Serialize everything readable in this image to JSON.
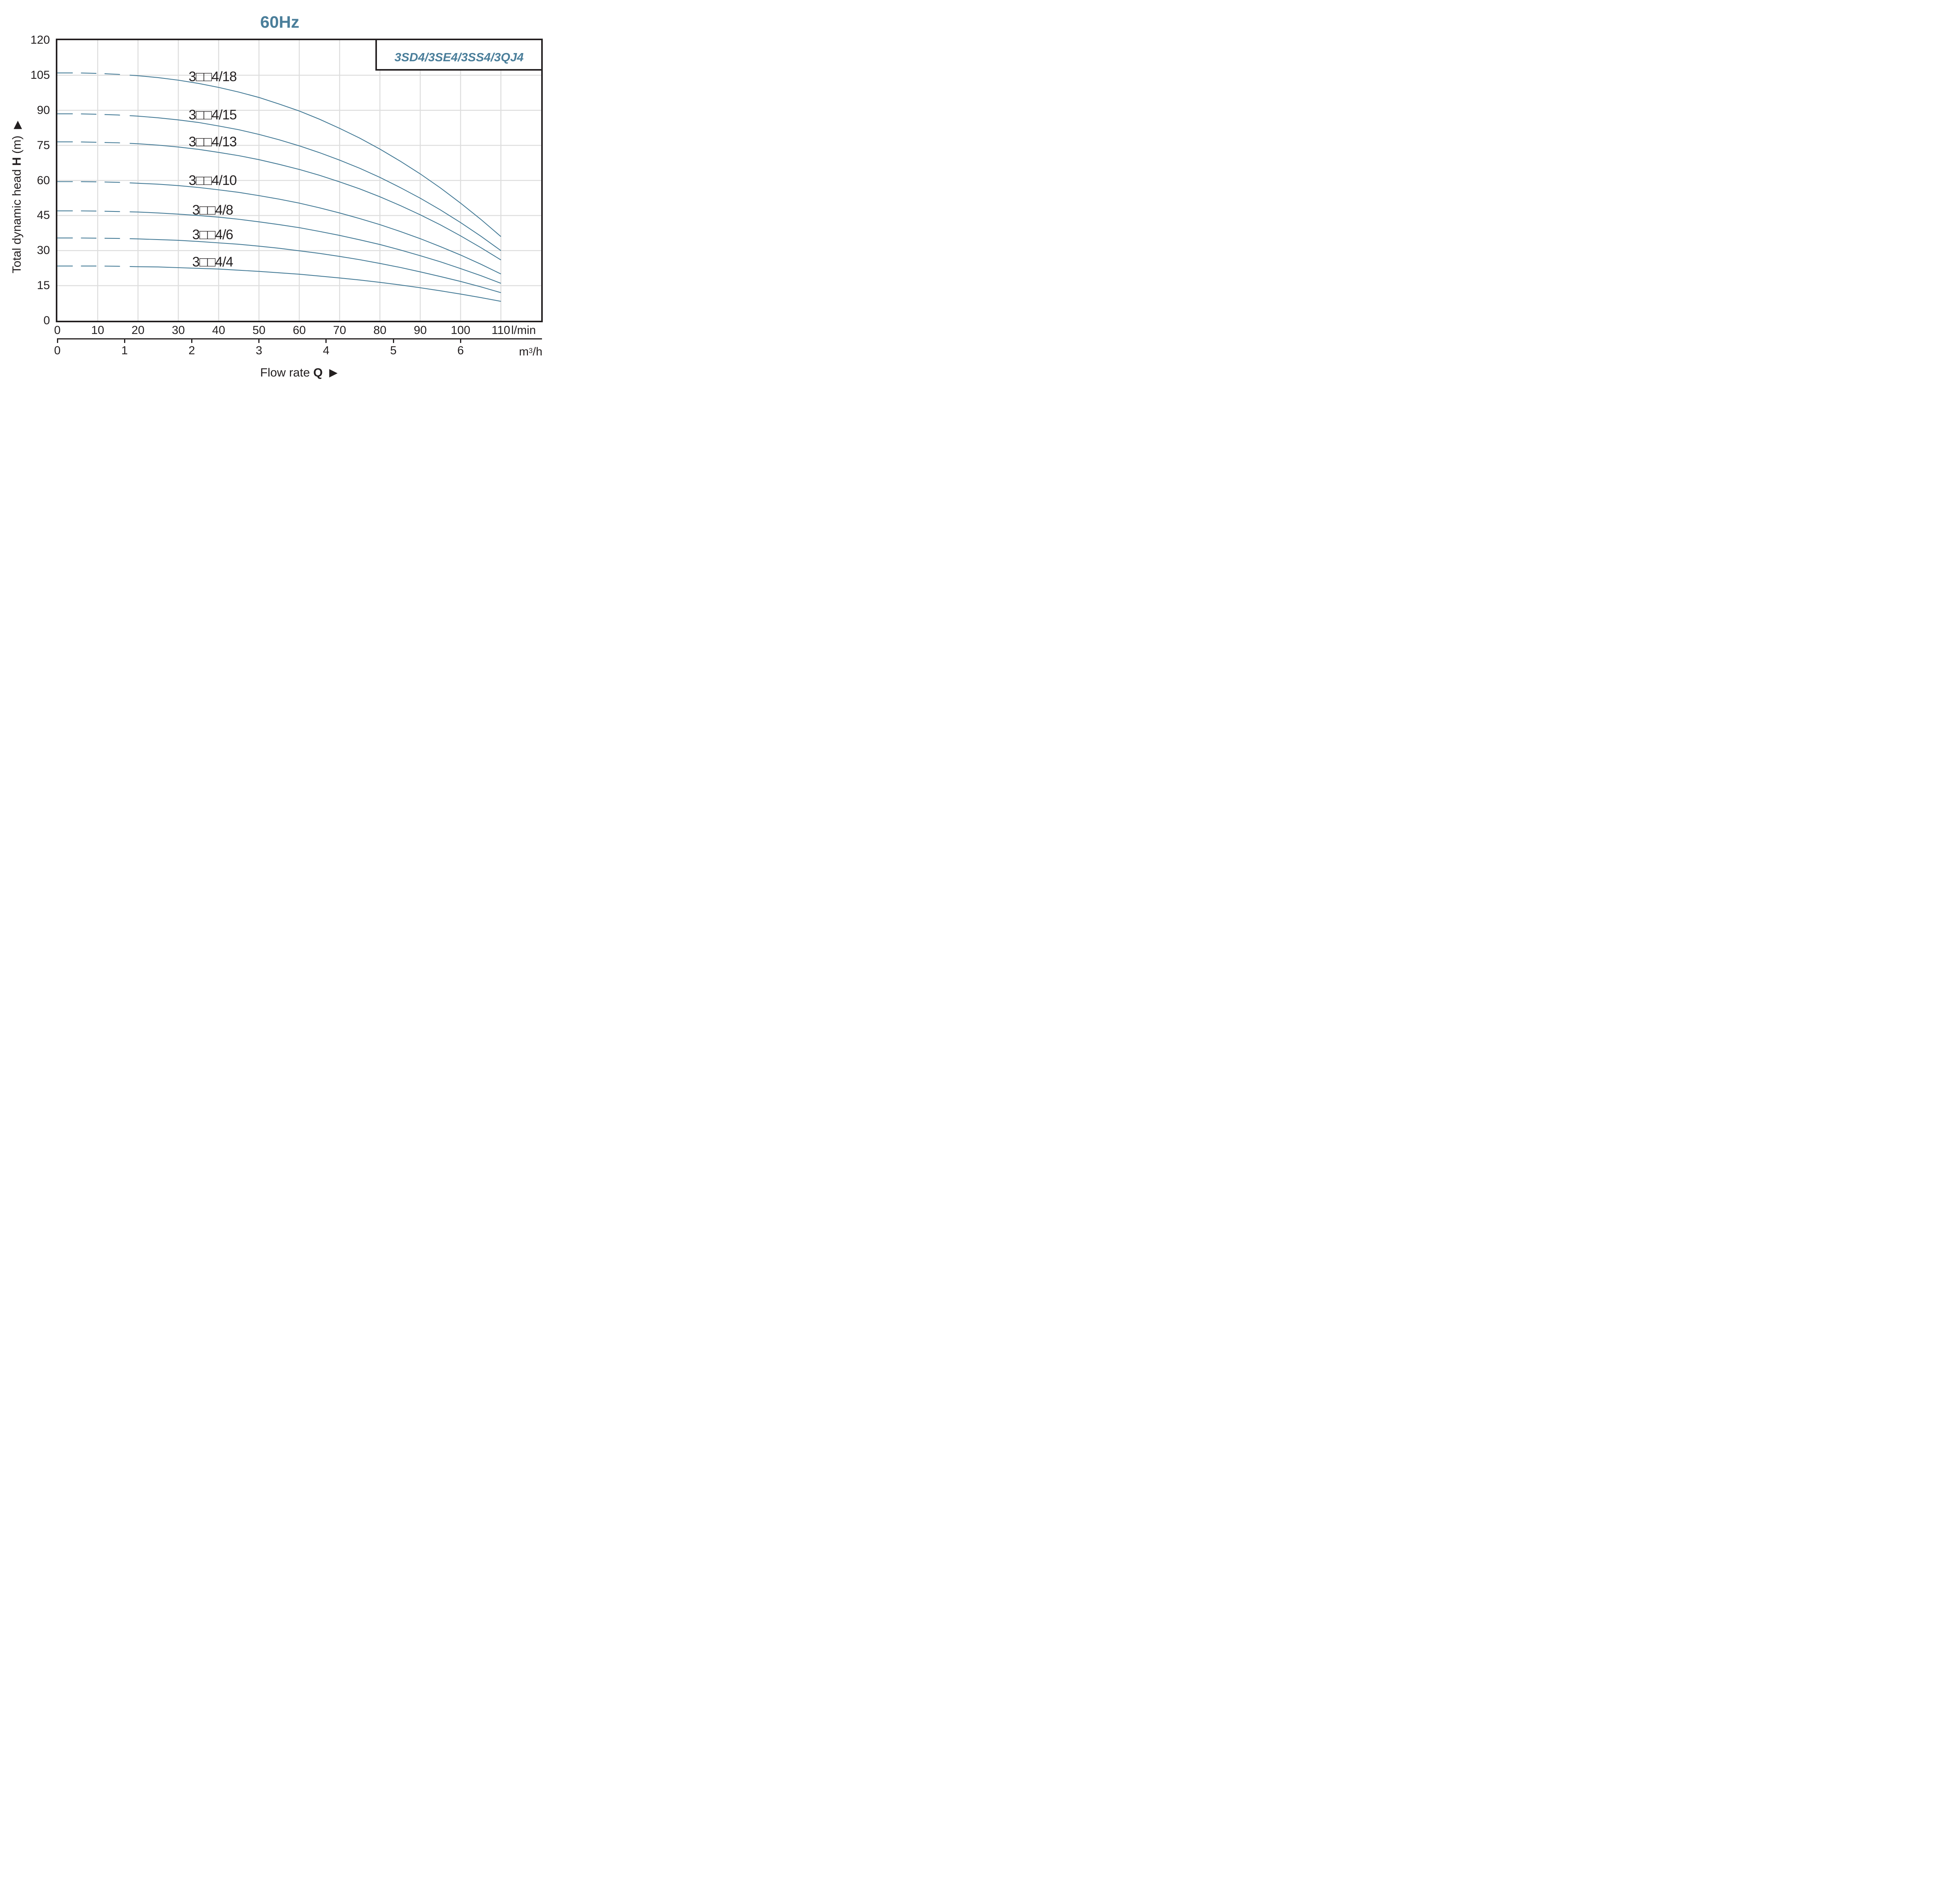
{
  "title": "60Hz",
  "legend": {
    "label": "3SD4/3SE4/3SS4/3QJ4"
  },
  "colors": {
    "accent": "#4a7e9a",
    "curve": "#427995",
    "grid": "#dedede",
    "ink": "#231f20"
  },
  "y_axis": {
    "title_prefix": "Total dynamic head",
    "title_var": "H",
    "title_unit": "(m)",
    "arrow": "▶",
    "ticks": [
      120,
      105,
      90,
      75,
      60,
      45,
      30,
      15,
      0
    ]
  },
  "x_axis_primary": {
    "ticks": [
      0,
      10,
      20,
      30,
      40,
      50,
      60,
      70,
      80,
      90,
      100,
      110
    ],
    "unit": "l/min"
  },
  "x_axis_secondary": {
    "ticks": [
      0,
      1,
      2,
      3,
      4,
      5,
      6
    ],
    "unit_main": "m",
    "unit_sup": "3",
    "unit_tail": "/h"
  },
  "x_title": {
    "prefix": "Flow rate",
    "var": "Q",
    "arrow": "▶"
  },
  "chart_data": {
    "type": "line",
    "title": "60Hz",
    "xlabel": "Flow rate Q",
    "ylabel": "Total dynamic head H (m)",
    "x_units": [
      "l/min",
      "m3/h"
    ],
    "x_unit_note": "1 m3/h = 16.667 l/min; secondary axis ticks 0-6 m3/h",
    "xlim_lmin": [
      0,
      120
    ],
    "ylim_m": [
      0,
      120
    ],
    "grid": true,
    "legend_position": "top-right",
    "curves_dashed_below_q_lmin": 17,
    "q_lmin": [
      0,
      5,
      10,
      15,
      20,
      25,
      30,
      35,
      40,
      45,
      50,
      55,
      60,
      65,
      70,
      75,
      80,
      85,
      90,
      95,
      100,
      105,
      110
    ],
    "series": [
      {
        "name": "3□□4/18",
        "label_q": 38.5,
        "label_h": 104.3,
        "h_m": [
          106,
          106,
          105.8,
          105.4,
          104.8,
          104,
          102.9,
          101.5,
          99.8,
          97.8,
          95.5,
          92.7,
          89.7,
          86.2,
          82.3,
          78.1,
          73.4,
          68.3,
          62.8,
          56.8,
          50.3,
          43.4,
          36
        ]
      },
      {
        "name": "3□□4/15",
        "label_q": 38.5,
        "label_h": 88,
        "h_m": [
          88.5,
          88.5,
          88.3,
          88,
          87.5,
          86.8,
          85.9,
          84.8,
          83.3,
          81.7,
          79.7,
          77.4,
          74.8,
          71.9,
          68.7,
          65.2,
          61.3,
          57,
          52.4,
          47.4,
          42,
          36.2,
          30
        ]
      },
      {
        "name": "3□□4/13",
        "label_q": 38.5,
        "label_h": 76.5,
        "h_m": [
          76.5,
          76.5,
          76.3,
          76.1,
          75.7,
          75.1,
          74.3,
          73.3,
          72,
          70.6,
          68.9,
          66.9,
          64.7,
          62.2,
          59.4,
          56.4,
          53,
          49.3,
          45.3,
          41,
          36.3,
          31.3,
          26
        ]
      },
      {
        "name": "3□□4/10",
        "label_q": 38.5,
        "label_h": 60,
        "h_m": [
          59.5,
          59.5,
          59.4,
          59.2,
          58.8,
          58.4,
          57.8,
          57,
          56,
          54.9,
          53.5,
          52,
          50.3,
          48.3,
          46.1,
          43.7,
          41.1,
          38.2,
          35.1,
          31.7,
          28.1,
          24.2,
          20
        ]
      },
      {
        "name": "3□□4/8",
        "label_q": 38.5,
        "label_h": 47.2,
        "h_m": [
          47,
          47,
          46.9,
          46.7,
          46.5,
          46.1,
          45.6,
          45,
          44.3,
          43.4,
          42.3,
          41.1,
          39.8,
          38.2,
          36.5,
          34.6,
          32.6,
          30.3,
          27.8,
          25.2,
          22.3,
          19.3,
          16
        ]
      },
      {
        "name": "3□□4/6",
        "label_q": 38.5,
        "label_h": 36.8,
        "h_m": [
          35.4,
          35.4,
          35.3,
          35.2,
          35,
          34.7,
          34.4,
          33.9,
          33.3,
          32.7,
          31.9,
          31,
          29.9,
          28.8,
          27.5,
          26.1,
          24.5,
          22.8,
          20.9,
          18.9,
          16.8,
          14.5,
          12
        ]
      },
      {
        "name": "3□□4/4",
        "label_q": 38.5,
        "label_h": 25,
        "h_m": [
          23.4,
          23.4,
          23.4,
          23.3,
          23.1,
          23,
          22.7,
          22.4,
          22.1,
          21.6,
          21.1,
          20.5,
          19.9,
          19.1,
          18.3,
          17.4,
          16.4,
          15.3,
          14.1,
          12.8,
          11.4,
          9.9,
          8.3
        ]
      }
    ]
  }
}
